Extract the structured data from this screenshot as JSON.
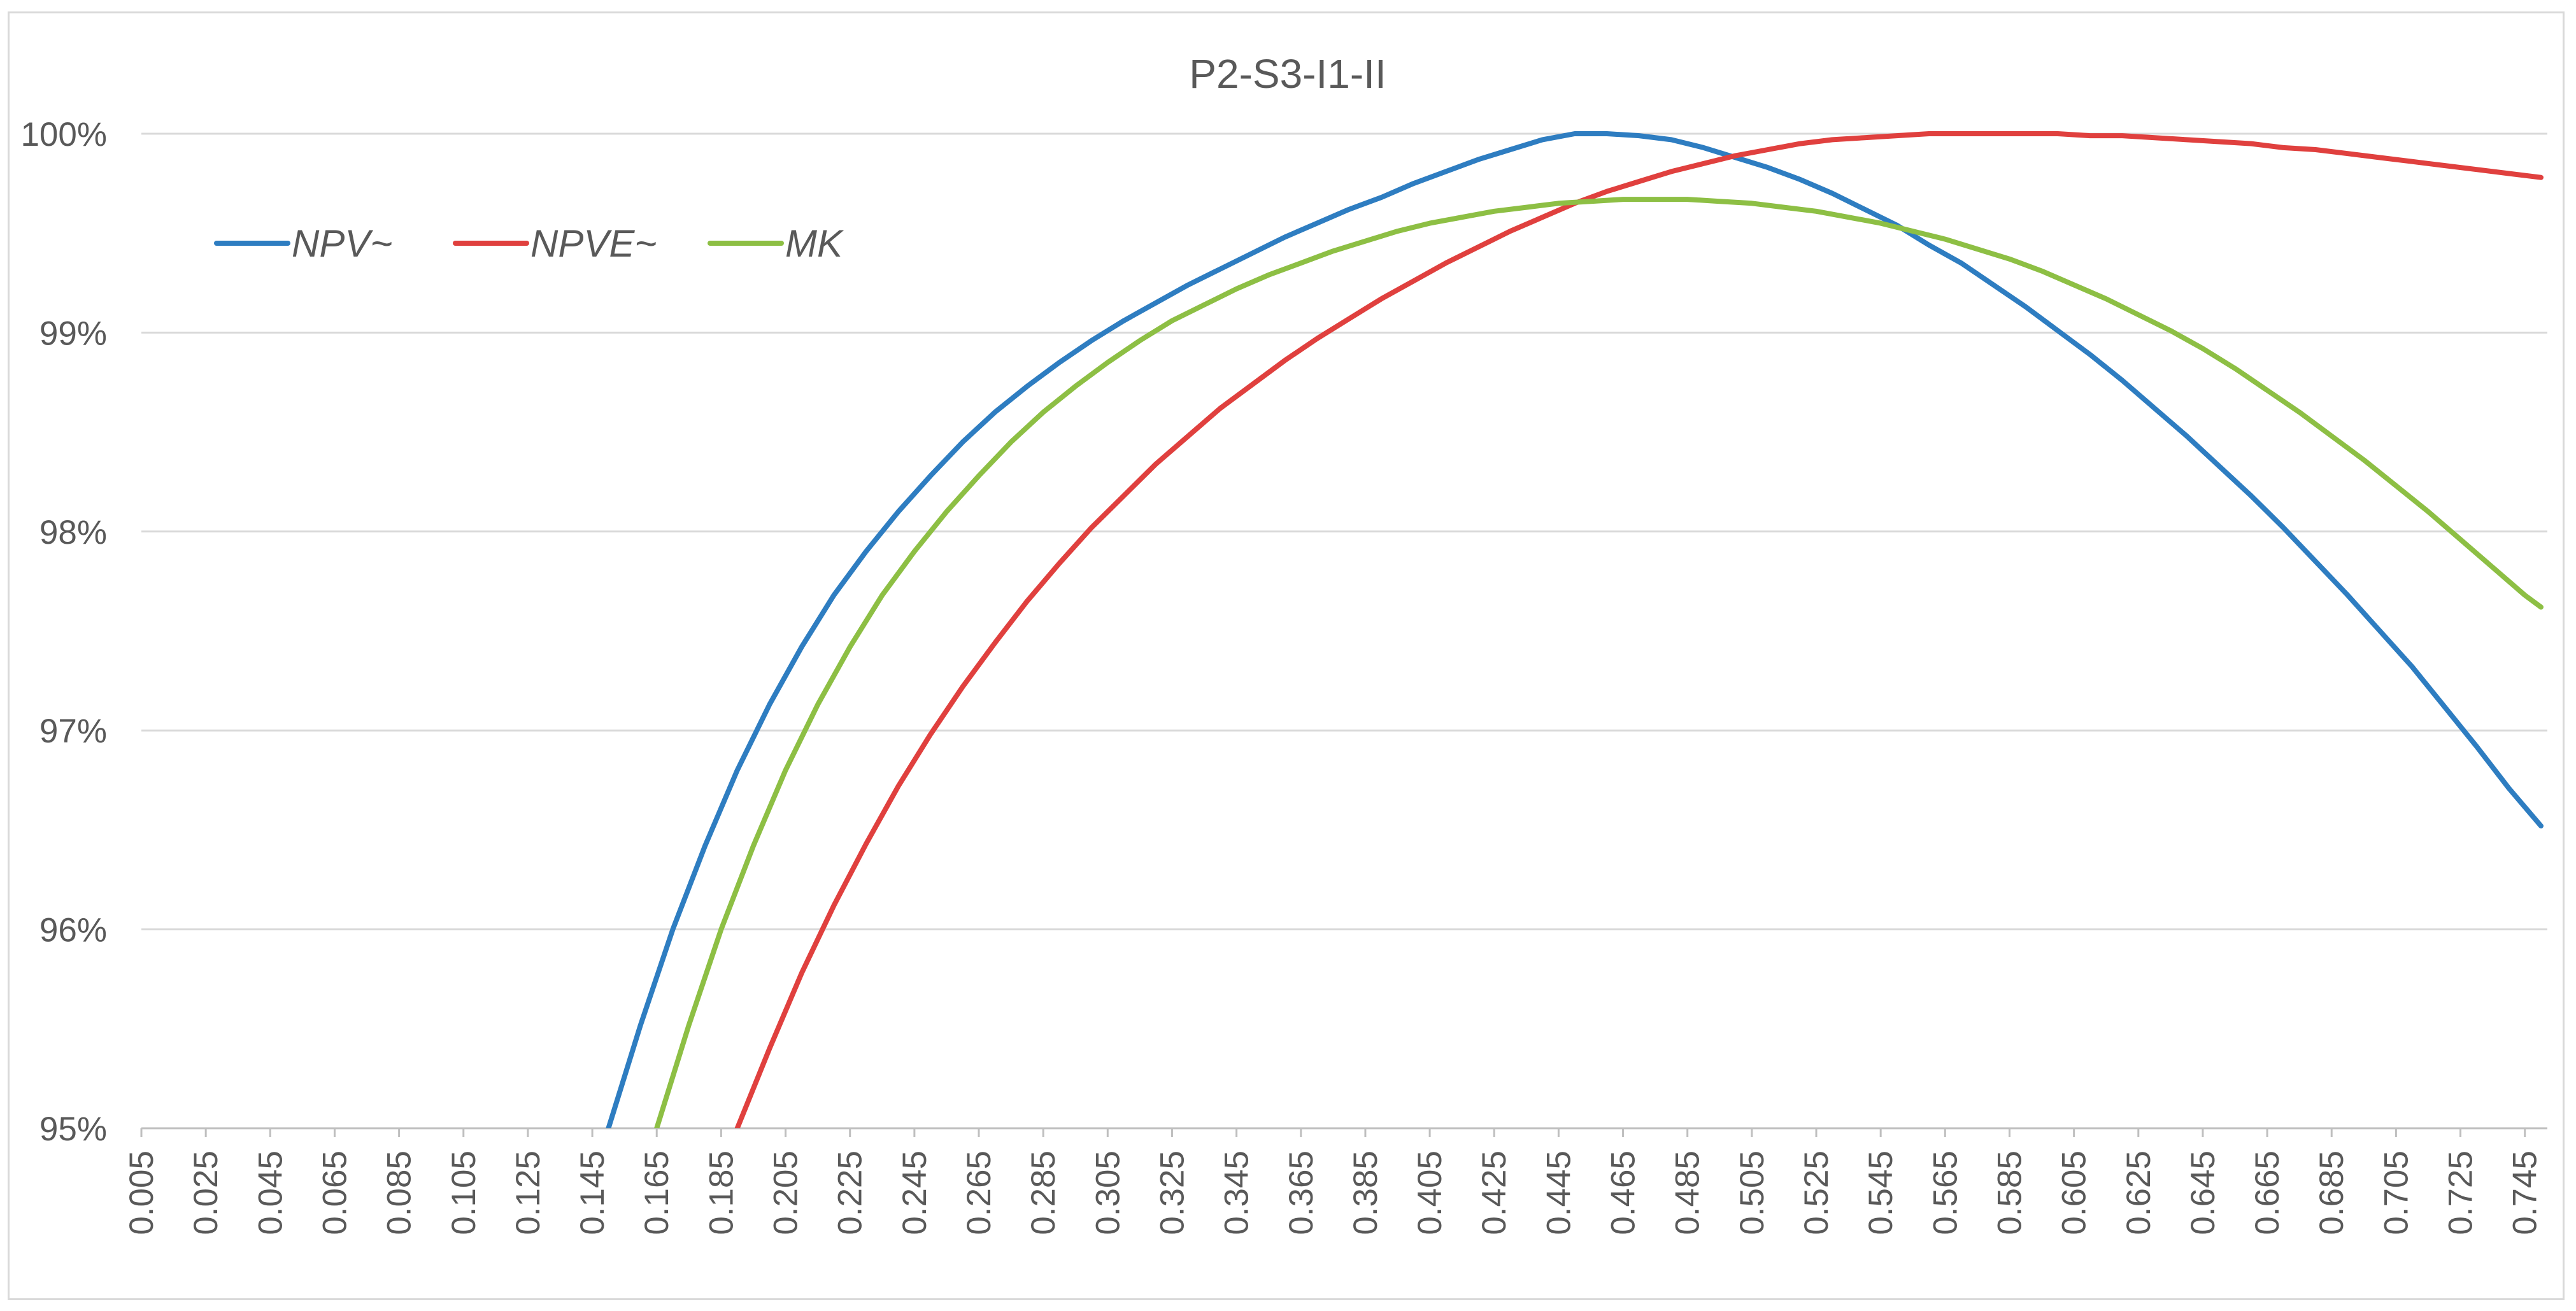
{
  "chart_data": {
    "type": "line",
    "title": "P2-S3-I1-II",
    "xlabel": "",
    "ylabel": "",
    "x_ticks": [
      "0.005",
      "0.025",
      "0.045",
      "0.065",
      "0.085",
      "0.105",
      "0.125",
      "0.145",
      "0.165",
      "0.185",
      "0.205",
      "0.225",
      "0.245",
      "0.265",
      "0.285",
      "0.305",
      "0.325",
      "0.345",
      "0.365",
      "0.385",
      "0.405",
      "0.425",
      "0.445",
      "0.465",
      "0.485",
      "0.505",
      "0.525",
      "0.545",
      "0.565",
      "0.585",
      "0.605",
      "0.625",
      "0.645",
      "0.665",
      "0.685",
      "0.705",
      "0.725",
      "0.745"
    ],
    "xlim": [
      0.005,
      0.75
    ],
    "y_ticks": [
      "95%",
      "96%",
      "97%",
      "98%",
      "99%",
      "100%"
    ],
    "y_tick_values": [
      0.95,
      0.96,
      0.97,
      0.98,
      0.99,
      1.0
    ],
    "ylim": [
      0.95,
      1.0
    ],
    "grid": "horizontal",
    "legend_position": "upper-left",
    "series": [
      {
        "name": "NPV~",
        "color": "#2e7dc1",
        "x": [
          0.15,
          0.16,
          0.17,
          0.18,
          0.19,
          0.2,
          0.21,
          0.22,
          0.23,
          0.24,
          0.25,
          0.26,
          0.27,
          0.28,
          0.29,
          0.3,
          0.31,
          0.32,
          0.33,
          0.34,
          0.35,
          0.36,
          0.37,
          0.38,
          0.39,
          0.4,
          0.41,
          0.42,
          0.43,
          0.44,
          0.45,
          0.46,
          0.47,
          0.48,
          0.49,
          0.5,
          0.51,
          0.52,
          0.53,
          0.54,
          0.55,
          0.56,
          0.57,
          0.58,
          0.59,
          0.6,
          0.61,
          0.62,
          0.63,
          0.64,
          0.65,
          0.66,
          0.67,
          0.68,
          0.69,
          0.7,
          0.71,
          0.72,
          0.73,
          0.74,
          0.75
        ],
        "y": [
          0.95,
          0.9552,
          0.96,
          0.9642,
          0.968,
          0.9713,
          0.9742,
          0.9768,
          0.979,
          0.981,
          0.9828,
          0.9845,
          0.986,
          0.9873,
          0.9885,
          0.9896,
          0.9906,
          0.9915,
          0.9924,
          0.9932,
          0.994,
          0.9948,
          0.9955,
          0.9962,
          0.9968,
          0.9975,
          0.9981,
          0.9987,
          0.9992,
          0.9997,
          1.0,
          1.0,
          0.9999,
          0.9997,
          0.9993,
          0.9988,
          0.9983,
          0.9977,
          0.997,
          0.9962,
          0.9954,
          0.9944,
          0.9935,
          0.9924,
          0.9913,
          0.9901,
          0.9889,
          0.9876,
          0.9862,
          0.9848,
          0.9833,
          0.9818,
          0.9802,
          0.9785,
          0.9768,
          0.975,
          0.9732,
          0.9712,
          0.9692,
          0.9671,
          0.9652
        ]
      },
      {
        "name": "NPVE~",
        "color": "#e0403e",
        "x": [
          0.19,
          0.2,
          0.21,
          0.22,
          0.23,
          0.24,
          0.25,
          0.26,
          0.27,
          0.28,
          0.29,
          0.3,
          0.31,
          0.32,
          0.33,
          0.34,
          0.35,
          0.36,
          0.37,
          0.38,
          0.39,
          0.4,
          0.41,
          0.42,
          0.43,
          0.44,
          0.45,
          0.46,
          0.47,
          0.48,
          0.49,
          0.5,
          0.51,
          0.52,
          0.53,
          0.54,
          0.55,
          0.56,
          0.57,
          0.58,
          0.59,
          0.6,
          0.61,
          0.62,
          0.63,
          0.64,
          0.65,
          0.66,
          0.67,
          0.68,
          0.69,
          0.7,
          0.71,
          0.72,
          0.73,
          0.74,
          0.75
        ],
        "y": [
          0.95,
          0.954,
          0.9578,
          0.9612,
          0.9643,
          0.9672,
          0.9698,
          0.9722,
          0.9744,
          0.9765,
          0.9784,
          0.9802,
          0.9818,
          0.9834,
          0.9848,
          0.9862,
          0.9874,
          0.9886,
          0.9897,
          0.9907,
          0.9917,
          0.9926,
          0.9935,
          0.9943,
          0.9951,
          0.9958,
          0.9965,
          0.9971,
          0.9976,
          0.9981,
          0.9985,
          0.9989,
          0.9992,
          0.9995,
          0.9997,
          0.9998,
          0.9999,
          1.0,
          1.0,
          1.0,
          1.0,
          1.0,
          0.9999,
          0.9999,
          0.9998,
          0.9997,
          0.9996,
          0.9995,
          0.9993,
          0.9992,
          0.999,
          0.9988,
          0.9986,
          0.9984,
          0.9982,
          0.998,
          0.9978
        ]
      },
      {
        "name": "MK",
        "color": "#8dbf44",
        "x": [
          0.165,
          0.175,
          0.185,
          0.195,
          0.205,
          0.215,
          0.225,
          0.235,
          0.245,
          0.255,
          0.265,
          0.275,
          0.285,
          0.295,
          0.305,
          0.315,
          0.325,
          0.335,
          0.345,
          0.355,
          0.365,
          0.375,
          0.385,
          0.395,
          0.405,
          0.415,
          0.425,
          0.435,
          0.445,
          0.455,
          0.465,
          0.475,
          0.485,
          0.495,
          0.505,
          0.515,
          0.525,
          0.535,
          0.545,
          0.555,
          0.565,
          0.575,
          0.585,
          0.595,
          0.605,
          0.615,
          0.625,
          0.635,
          0.645,
          0.655,
          0.665,
          0.675,
          0.685,
          0.695,
          0.705,
          0.715,
          0.725,
          0.735,
          0.745,
          0.75
        ],
        "y": [
          0.95,
          0.9552,
          0.96,
          0.9642,
          0.968,
          0.9713,
          0.9742,
          0.9768,
          0.979,
          0.981,
          0.9828,
          0.9845,
          0.986,
          0.9873,
          0.9885,
          0.9896,
          0.9906,
          0.9914,
          0.9922,
          0.9929,
          0.9935,
          0.9941,
          0.9946,
          0.9951,
          0.9955,
          0.9958,
          0.9961,
          0.9963,
          0.9965,
          0.9966,
          0.9967,
          0.9967,
          0.9967,
          0.9966,
          0.9965,
          0.9963,
          0.9961,
          0.9958,
          0.9955,
          0.9951,
          0.9947,
          0.9942,
          0.9937,
          0.9931,
          0.9924,
          0.9917,
          0.9909,
          0.9901,
          0.9892,
          0.9882,
          0.9871,
          0.986,
          0.9848,
          0.9836,
          0.9823,
          0.981,
          0.9796,
          0.9782,
          0.9768,
          0.9762
        ]
      }
    ]
  }
}
